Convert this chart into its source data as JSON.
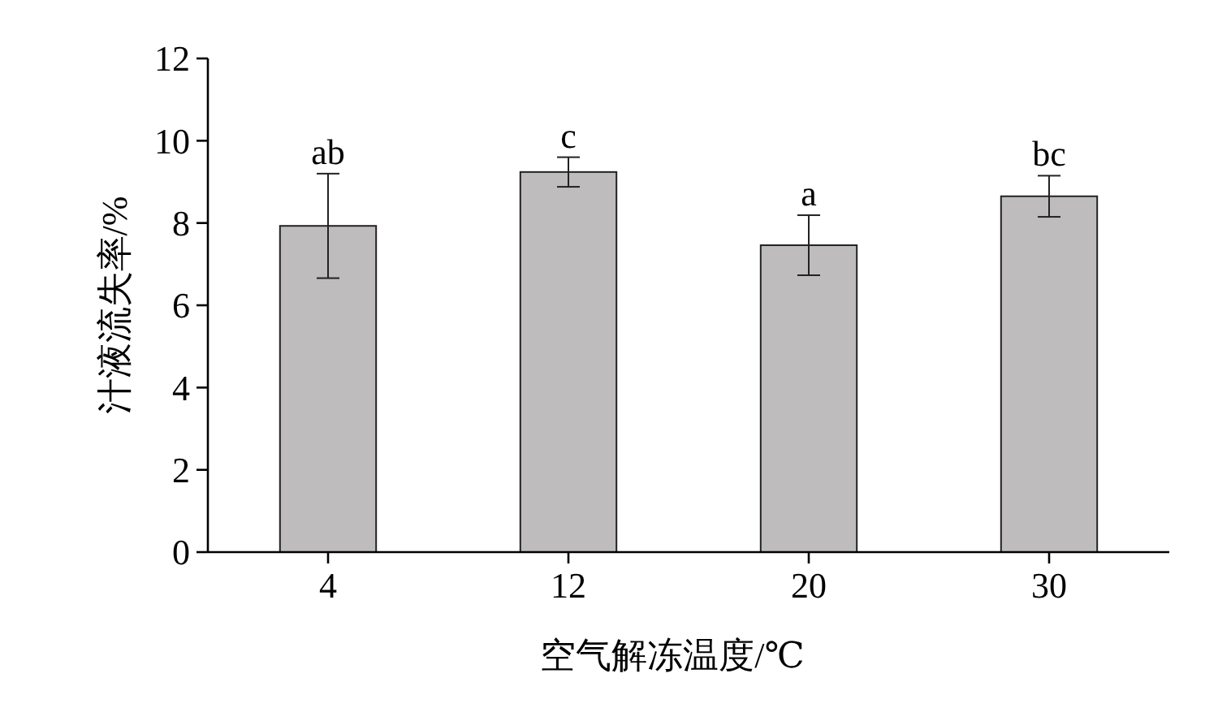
{
  "chart_data": {
    "type": "bar",
    "xlabel": "空气解冻温度/℃",
    "ylabel": "汁液流失率/%",
    "categories": [
      "4",
      "12",
      "20",
      "30"
    ],
    "values": [
      7.93,
      9.24,
      7.46,
      8.65
    ],
    "errors": [
      1.27,
      0.36,
      0.73,
      0.5
    ],
    "color": "#bebcbc",
    "ylim": [
      0,
      12
    ],
    "yticks": [
      0,
      2,
      4,
      6,
      8,
      10,
      12
    ],
    "grid": false,
    "annotations": [
      {
        "text": "ab",
        "x": "4",
        "y": 9.2
      },
      {
        "text": "c",
        "x": "12",
        "y": 9.6
      },
      {
        "text": "a",
        "x": "20",
        "y": 8.19
      },
      {
        "text": "bc",
        "x": "30",
        "y": 9.15
      }
    ]
  }
}
